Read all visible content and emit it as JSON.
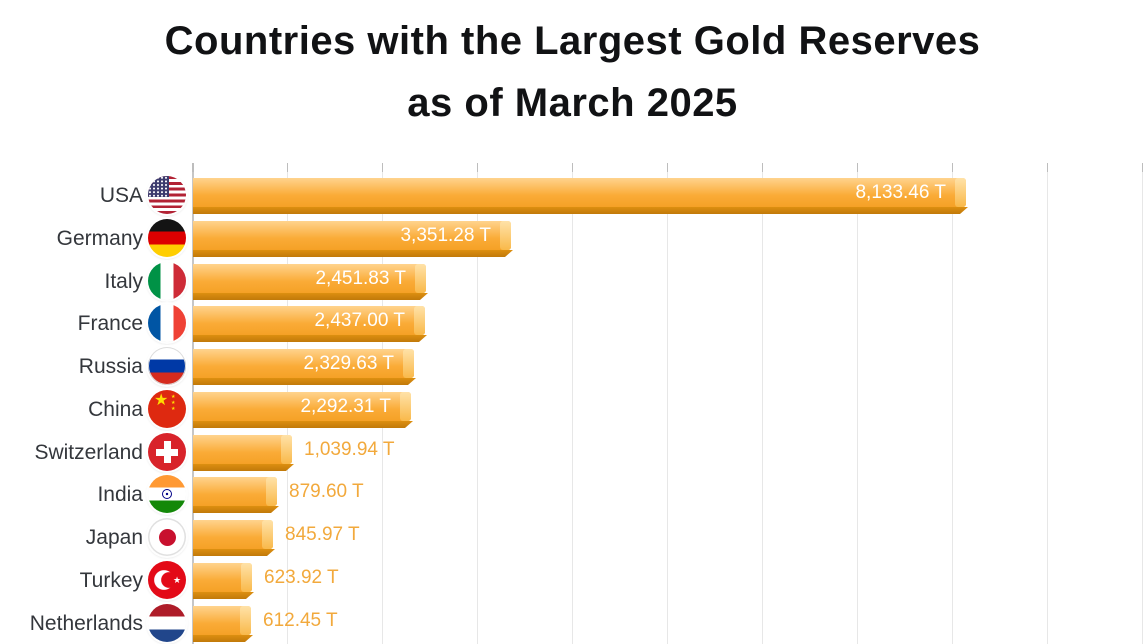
{
  "title": {
    "line1": "Countries with the Largest Gold Reserves",
    "line2": "as of March 2025"
  },
  "chart_data": {
    "type": "bar",
    "orientation": "horizontal",
    "title": "Countries with the Largest Gold Reserves as of March 2025",
    "unit": "T",
    "categories": [
      "USA",
      "Germany",
      "Italy",
      "France",
      "Russia",
      "China",
      "Switzerland",
      "India",
      "Japan",
      "Turkey",
      "Netherlands"
    ],
    "values": [
      8133.46,
      3351.28,
      2451.83,
      2437.0,
      2329.63,
      2292.31,
      1039.94,
      879.6,
      845.97,
      623.92,
      612.45
    ],
    "value_labels": [
      "8,133.46 T",
      "3,351.28 T",
      "2,451.83 T",
      "2,437.00 T",
      "2,329.63 T",
      "2,292.31 T",
      "1,039.94 T",
      "879.60 T",
      "845.97 T",
      "623.92 T",
      "612.45 T"
    ],
    "flags": [
      "usa",
      "germany",
      "italy",
      "france",
      "russia",
      "china",
      "switzerland",
      "india",
      "japan",
      "turkey",
      "netherlands"
    ],
    "xlim": [
      0,
      10000
    ],
    "grid_interval": 1000,
    "grid": true,
    "legend": false,
    "colors": {
      "bar_top": "#FFD38E",
      "bar_mid": "#FAAB37",
      "bar_bottom": "#F5A126",
      "bar_edge_dark": "#C1790A",
      "bar_end_cap": "#FFE2A8",
      "value_inside": "#FFFFFF",
      "value_outside": "#F2A93C",
      "country_label": "#34373C",
      "gridline": "#E7E7E7",
      "background": "#FFFFFF"
    }
  }
}
